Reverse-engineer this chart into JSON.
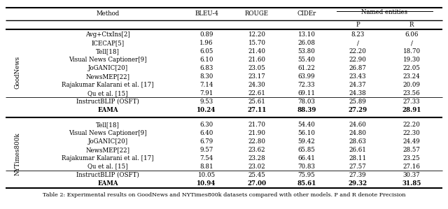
{
  "title": "Table 2: Experimental results on GoodNews and NYTimes800k datasets compared with other models. P and R denote Precision",
  "goodnews_rows": [
    [
      "Avg+CtxIns[2]",
      "0.89",
      "12.20",
      "13.10",
      "8.23",
      "6.06",
      false
    ],
    [
      "ICECAP[5]",
      "1.96",
      "15.70",
      "26.08",
      "/",
      "/",
      false
    ],
    [
      "Tell[18]",
      "6.05",
      "21.40",
      "53.80",
      "22.20",
      "18.70",
      false
    ],
    [
      "Visual News Captioner[9]",
      "6.10",
      "21.60",
      "55.40",
      "22.90",
      "19.30",
      false
    ],
    [
      "JoGANIC[20]",
      "6.83",
      "23.05",
      "61.22",
      "26.87",
      "22.05",
      false
    ],
    [
      "NewsMEP[22]",
      "8.30",
      "23.17",
      "63.99",
      "23.43",
      "23.24",
      false
    ],
    [
      "Rajakumar Kalarani et al. [17]",
      "7.14",
      "24.30",
      "72.33",
      "24.37",
      "20.09",
      false
    ],
    [
      "Qu et al. [15]",
      "7.91",
      "22.61",
      "69.11",
      "24.38",
      "23.56",
      false
    ],
    [
      "InstructBLIP (OSFT)",
      "9.53",
      "25.61",
      "78.03",
      "25.89",
      "27.33",
      false
    ],
    [
      "EAMA",
      "10.24",
      "27.11",
      "88.39",
      "27.29",
      "28.91",
      true
    ]
  ],
  "nytimes_rows": [
    [
      "Tell[18]",
      "6.30",
      "21.70",
      "54.40",
      "24.60",
      "22.20",
      false
    ],
    [
      "Visual News Captioner[9]",
      "6.40",
      "21.90",
      "56.10",
      "24.80",
      "22.30",
      false
    ],
    [
      "JoGANIC[20]",
      "6.79",
      "22.80",
      "59.42",
      "28.63",
      "24.49",
      false
    ],
    [
      "NewsMEP[22]",
      "9.57",
      "23.62",
      "65.85",
      "26.61",
      "28.57",
      false
    ],
    [
      "Rajakumar Kalarani et al. [17]",
      "7.54",
      "23.28",
      "66.41",
      "28.11",
      "23.25",
      false
    ],
    [
      "Qu et al. [15]",
      "8.81",
      "23.02",
      "70.83",
      "27.57",
      "27.16",
      false
    ],
    [
      "InstructBLIP (OSFT)",
      "10.05",
      "25.45",
      "75.95",
      "27.39",
      "30.37",
      false
    ],
    [
      "EAMA",
      "10.94",
      "27.00",
      "85.61",
      "29.32",
      "31.85",
      true
    ]
  ],
  "fig_width": 6.4,
  "fig_height": 2.99,
  "font_size": 6.2,
  "title_font_size": 5.8
}
